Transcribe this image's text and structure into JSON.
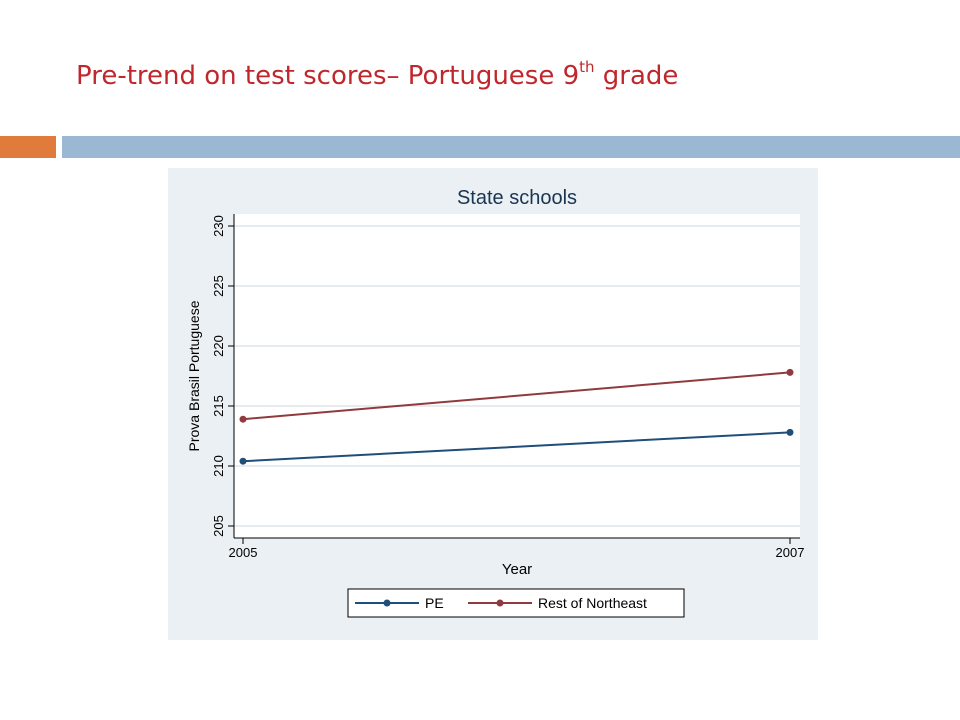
{
  "slide": {
    "title_main": "Pre-trend on test scores– Portuguese 9",
    "title_sup": "th",
    "title_end": " grade",
    "colors": {
      "title": "#c0272d",
      "accent_bar": "#e07b3c",
      "main_bar": "#9ab7d3"
    }
  },
  "chart_data": {
    "type": "line",
    "title": "State schools",
    "xlabel": "Year",
    "ylabel": "Prova Brasil Portuguese",
    "x": [
      2005,
      2007
    ],
    "x_ticks": [
      "2005",
      "2007"
    ],
    "y_ticks": [
      "205",
      "210",
      "215",
      "220",
      "225",
      "230"
    ],
    "ylim": [
      205,
      230
    ],
    "grid": true,
    "legend_position": "bottom",
    "series": [
      {
        "name": "PE",
        "values": [
          210.4,
          212.8
        ],
        "color": "#1f4e79"
      },
      {
        "name": "Rest of Northeast",
        "values": [
          213.9,
          217.8
        ],
        "color": "#903a3e"
      }
    ],
    "colors": {
      "panel_bg": "#eaf0f4",
      "plot_bg": "#ffffff",
      "grid": "#dfe6ec"
    }
  }
}
